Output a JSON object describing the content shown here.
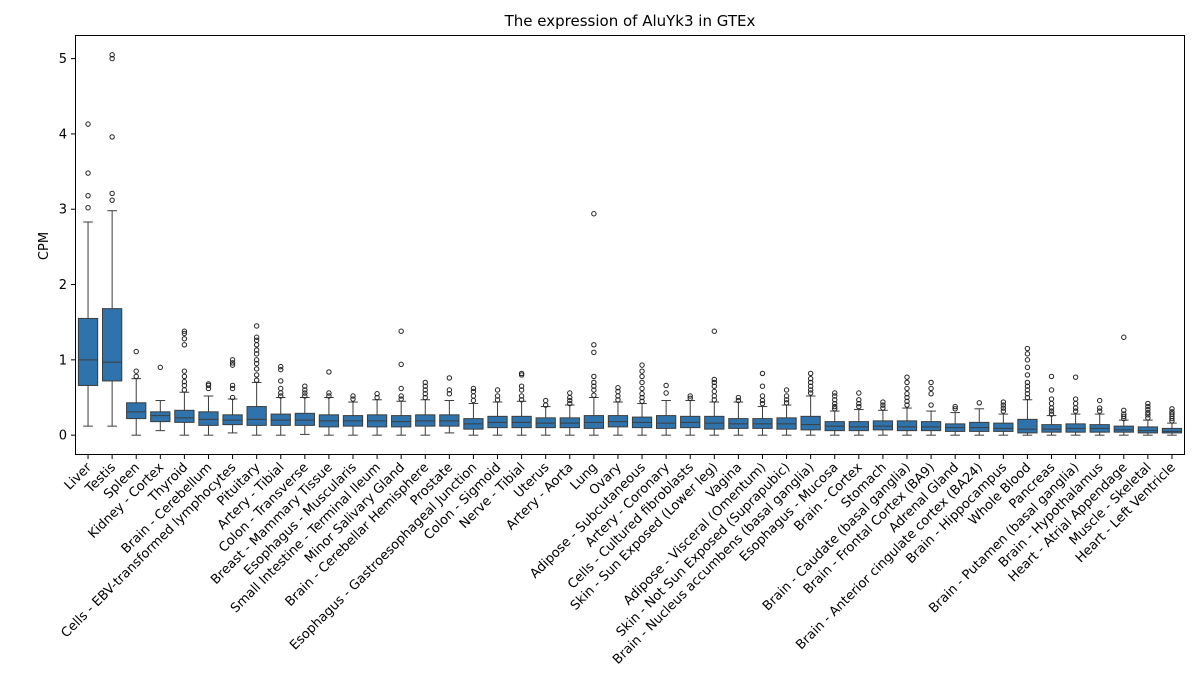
{
  "chart_data": {
    "type": "box",
    "title": "The expression of AluYk3 in GTEx",
    "xlabel": "",
    "ylabel": "CPM",
    "ylim": [
      -0.25,
      5.3
    ],
    "yticks": [
      0,
      1,
      2,
      3,
      4,
      5
    ],
    "grid": false,
    "color": "#2f73ad",
    "categories": [
      "Liver",
      "Testis",
      "Spleen",
      "Kidney - Cortex",
      "Thyroid",
      "Brain - Cerebellum",
      "Cells - EBV-transformed lymphocytes",
      "Pituitary",
      "Artery - Tibial",
      "Colon - Transverse",
      "Breast - Mammary Tissue",
      "Esophagus - Muscularis",
      "Small Intestine - Terminal Ileum",
      "Minor Salivary Gland",
      "Brain - Cerebellar Hemisphere",
      "Prostate",
      "Esophagus - Gastroesophageal Junction",
      "Colon - Sigmoid",
      "Nerve - Tibial",
      "Uterus",
      "Artery - Aorta",
      "Lung",
      "Ovary",
      "Adipose - Subcutaneous",
      "Artery - Coronary",
      "Cells - Cultured fibroblasts",
      "Skin - Sun Exposed (Lower leg)",
      "Vagina",
      "Adipose - Visceral (Omentum)",
      "Skin - Not Sun Exposed (Suprapubic)",
      "Brain - Nucleus accumbens (basal ganglia)",
      "Esophagus - Mucosa",
      "Brain - Cortex",
      "Stomach",
      "Brain - Caudate (basal ganglia)",
      "Brain - Frontal Cortex (BA9)",
      "Adrenal Gland",
      "Brain - Anterior cingulate cortex (BA24)",
      "Brain - Hippocampus",
      "Whole Blood",
      "Pancreas",
      "Brain - Putamen (basal ganglia)",
      "Brain - Hypothalamus",
      "Heart - Atrial Appendage",
      "Muscle - Skeletal",
      "Heart - Left Ventricle"
    ],
    "boxes": [
      {
        "whislo": 0.12,
        "q1": 0.66,
        "med": 1.0,
        "q3": 1.55,
        "whishi": 2.83,
        "fliers": [
          3.02,
          3.18,
          3.48,
          4.13
        ]
      },
      {
        "whislo": 0.12,
        "q1": 0.72,
        "med": 0.97,
        "q3": 1.68,
        "whishi": 2.98,
        "fliers": [
          3.12,
          3.21,
          3.96,
          5.0,
          5.05
        ]
      },
      {
        "whislo": 0.0,
        "q1": 0.22,
        "med": 0.31,
        "q3": 0.43,
        "whishi": 0.75,
        "fliers": [
          0.78,
          0.85,
          1.11
        ]
      },
      {
        "whislo": 0.06,
        "q1": 0.18,
        "med": 0.26,
        "q3": 0.31,
        "whishi": 0.46,
        "fliers": [
          0.9
        ]
      },
      {
        "whislo": 0.0,
        "q1": 0.17,
        "med": 0.23,
        "q3": 0.33,
        "whishi": 0.57,
        "fliers": [
          0.6,
          0.66,
          0.71,
          0.78,
          0.85,
          1.2,
          1.28,
          1.35,
          1.38
        ]
      },
      {
        "whislo": 0.0,
        "q1": 0.13,
        "med": 0.21,
        "q3": 0.31,
        "whishi": 0.52,
        "fliers": [
          0.62,
          0.66,
          0.68
        ]
      },
      {
        "whislo": 0.03,
        "q1": 0.14,
        "med": 0.2,
        "q3": 0.27,
        "whishi": 0.48,
        "fliers": [
          0.5,
          0.62,
          0.66,
          0.93,
          0.96,
          1.0
        ]
      },
      {
        "whislo": 0.0,
        "q1": 0.13,
        "med": 0.21,
        "q3": 0.38,
        "whishi": 0.7,
        "fliers": [
          0.73,
          0.8,
          0.88,
          0.95,
          1.0,
          1.08,
          1.13,
          1.2,
          1.26,
          1.3,
          1.45
        ]
      },
      {
        "whislo": 0.0,
        "q1": 0.13,
        "med": 0.2,
        "q3": 0.28,
        "whishi": 0.5,
        "fliers": [
          0.52,
          0.56,
          0.62,
          0.72,
          0.87,
          0.91
        ]
      },
      {
        "whislo": 0.01,
        "q1": 0.13,
        "med": 0.2,
        "q3": 0.29,
        "whishi": 0.5,
        "fliers": [
          0.52,
          0.56,
          0.6,
          0.65
        ]
      },
      {
        "whislo": 0.0,
        "q1": 0.11,
        "med": 0.19,
        "q3": 0.27,
        "whishi": 0.5,
        "fliers": [
          0.52,
          0.56,
          0.84
        ]
      },
      {
        "whislo": 0.0,
        "q1": 0.12,
        "med": 0.19,
        "q3": 0.26,
        "whishi": 0.44,
        "fliers": [
          0.48,
          0.52
        ]
      },
      {
        "whislo": 0.0,
        "q1": 0.11,
        "med": 0.19,
        "q3": 0.27,
        "whishi": 0.47,
        "fliers": [
          0.5,
          0.55
        ]
      },
      {
        "whislo": 0.0,
        "q1": 0.11,
        "med": 0.18,
        "q3": 0.26,
        "whishi": 0.45,
        "fliers": [
          0.48,
          0.52,
          0.62,
          0.94,
          1.38
        ]
      },
      {
        "whislo": 0.0,
        "q1": 0.12,
        "med": 0.19,
        "q3": 0.27,
        "whishi": 0.47,
        "fliers": [
          0.5,
          0.55,
          0.6,
          0.65,
          0.7
        ]
      },
      {
        "whislo": 0.03,
        "q1": 0.12,
        "med": 0.19,
        "q3": 0.27,
        "whishi": 0.46,
        "fliers": [
          0.55,
          0.6,
          0.76
        ]
      },
      {
        "whislo": 0.0,
        "q1": 0.08,
        "med": 0.15,
        "q3": 0.22,
        "whishi": 0.42,
        "fliers": [
          0.46,
          0.52,
          0.58,
          0.62
        ]
      },
      {
        "whislo": 0.0,
        "q1": 0.1,
        "med": 0.17,
        "q3": 0.25,
        "whishi": 0.44,
        "fliers": [
          0.47,
          0.52,
          0.6
        ]
      },
      {
        "whislo": 0.0,
        "q1": 0.1,
        "med": 0.17,
        "q3": 0.25,
        "whishi": 0.45,
        "fliers": [
          0.47,
          0.52,
          0.6,
          0.65,
          0.8,
          0.82
        ]
      },
      {
        "whislo": 0.0,
        "q1": 0.1,
        "med": 0.16,
        "q3": 0.23,
        "whishi": 0.38,
        "fliers": [
          0.4,
          0.46
        ]
      },
      {
        "whislo": 0.0,
        "q1": 0.1,
        "med": 0.16,
        "q3": 0.23,
        "whishi": 0.4,
        "fliers": [
          0.42,
          0.46,
          0.5,
          0.56
        ]
      },
      {
        "whislo": 0.0,
        "q1": 0.09,
        "med": 0.17,
        "q3": 0.26,
        "whishi": 0.5,
        "fliers": [
          0.53,
          0.6,
          0.65,
          0.7,
          0.78,
          1.1,
          1.2,
          2.94
        ]
      },
      {
        "whislo": 0.0,
        "q1": 0.11,
        "med": 0.18,
        "q3": 0.26,
        "whishi": 0.44,
        "fliers": [
          0.47,
          0.52,
          0.58,
          0.63
        ]
      },
      {
        "whislo": 0.0,
        "q1": 0.1,
        "med": 0.17,
        "q3": 0.24,
        "whishi": 0.42,
        "fliers": [
          0.45,
          0.5,
          0.55,
          0.62,
          0.7,
          0.78,
          0.85,
          0.93
        ]
      },
      {
        "whislo": 0.0,
        "q1": 0.09,
        "med": 0.16,
        "q3": 0.26,
        "whishi": 0.46,
        "fliers": [
          0.56,
          0.66
        ]
      },
      {
        "whislo": 0.0,
        "q1": 0.1,
        "med": 0.17,
        "q3": 0.25,
        "whishi": 0.46,
        "fliers": [
          0.49,
          0.52
        ]
      },
      {
        "whislo": 0.0,
        "q1": 0.08,
        "med": 0.16,
        "q3": 0.25,
        "whishi": 0.44,
        "fliers": [
          0.47,
          0.52,
          0.58,
          0.65,
          0.7,
          0.74,
          1.38
        ]
      },
      {
        "whislo": 0.0,
        "q1": 0.09,
        "med": 0.15,
        "q3": 0.22,
        "whishi": 0.44,
        "fliers": [
          0.46,
          0.5
        ]
      },
      {
        "whislo": 0.0,
        "q1": 0.09,
        "med": 0.15,
        "q3": 0.22,
        "whishi": 0.38,
        "fliers": [
          0.42,
          0.46,
          0.52,
          0.65,
          0.82
        ]
      },
      {
        "whislo": 0.0,
        "q1": 0.08,
        "med": 0.15,
        "q3": 0.23,
        "whishi": 0.4,
        "fliers": [
          0.43,
          0.47,
          0.52,
          0.6
        ]
      },
      {
        "whislo": 0.0,
        "q1": 0.07,
        "med": 0.14,
        "q3": 0.25,
        "whishi": 0.52,
        "fliers": [
          0.56,
          0.6,
          0.65,
          0.7,
          0.75,
          0.82
        ]
      },
      {
        "whislo": 0.0,
        "q1": 0.06,
        "med": 0.12,
        "q3": 0.18,
        "whishi": 0.32,
        "fliers": [
          0.35,
          0.38,
          0.42,
          0.47,
          0.52,
          0.56
        ]
      },
      {
        "whislo": 0.0,
        "q1": 0.06,
        "med": 0.11,
        "q3": 0.18,
        "whishi": 0.34,
        "fliers": [
          0.38,
          0.42,
          0.47,
          0.56
        ]
      },
      {
        "whislo": 0.0,
        "q1": 0.07,
        "med": 0.12,
        "q3": 0.19,
        "whishi": 0.33,
        "fliers": [
          0.36,
          0.4,
          0.44
        ]
      },
      {
        "whislo": 0.0,
        "q1": 0.06,
        "med": 0.11,
        "q3": 0.19,
        "whishi": 0.36,
        "fliers": [
          0.4,
          0.45,
          0.5,
          0.55,
          0.62,
          0.7,
          0.77
        ]
      },
      {
        "whislo": 0.0,
        "q1": 0.06,
        "med": 0.11,
        "q3": 0.18,
        "whishi": 0.32,
        "fliers": [
          0.4,
          0.55,
          0.62,
          0.7
        ]
      },
      {
        "whislo": 0.0,
        "q1": 0.05,
        "med": 0.1,
        "q3": 0.15,
        "whishi": 0.3,
        "fliers": [
          0.35,
          0.38
        ]
      },
      {
        "whislo": 0.0,
        "q1": 0.05,
        "med": 0.1,
        "q3": 0.17,
        "whishi": 0.35,
        "fliers": [
          0.43
        ]
      },
      {
        "whislo": 0.0,
        "q1": 0.05,
        "med": 0.09,
        "q3": 0.16,
        "whishi": 0.28,
        "fliers": [
          0.32,
          0.36,
          0.4,
          0.44
        ]
      },
      {
        "whislo": 0.0,
        "q1": 0.03,
        "med": 0.08,
        "q3": 0.21,
        "whishi": 0.47,
        "fliers": [
          0.5,
          0.55,
          0.6,
          0.65,
          0.7,
          0.8,
          0.9,
          1.0,
          1.08,
          1.15
        ]
      },
      {
        "whislo": 0.0,
        "q1": 0.04,
        "med": 0.08,
        "q3": 0.14,
        "whishi": 0.26,
        "fliers": [
          0.28,
          0.32,
          0.36,
          0.42,
          0.48,
          0.6,
          0.78
        ]
      },
      {
        "whislo": 0.0,
        "q1": 0.04,
        "med": 0.09,
        "q3": 0.15,
        "whishi": 0.28,
        "fliers": [
          0.32,
          0.36,
          0.42,
          0.48,
          0.77
        ]
      },
      {
        "whislo": 0.0,
        "q1": 0.04,
        "med": 0.09,
        "q3": 0.14,
        "whishi": 0.28,
        "fliers": [
          0.32,
          0.36,
          0.46
        ]
      },
      {
        "whislo": 0.0,
        "q1": 0.04,
        "med": 0.07,
        "q3": 0.12,
        "whishi": 0.2,
        "fliers": [
          0.22,
          0.25,
          0.28,
          0.33,
          1.3
        ]
      },
      {
        "whislo": 0.0,
        "q1": 0.03,
        "med": 0.06,
        "q3": 0.11,
        "whishi": 0.2,
        "fliers": [
          0.23,
          0.27,
          0.3,
          0.34,
          0.38,
          0.42
        ]
      },
      {
        "whislo": 0.0,
        "q1": 0.03,
        "med": 0.05,
        "q3": 0.09,
        "whishi": 0.16,
        "fliers": [
          0.19,
          0.22,
          0.25,
          0.28,
          0.31,
          0.35
        ]
      }
    ]
  }
}
